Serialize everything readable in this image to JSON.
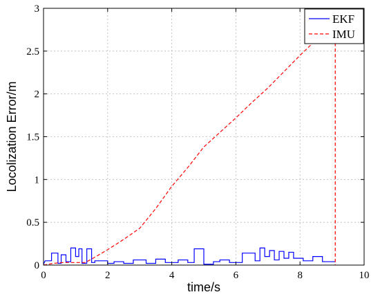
{
  "chart_data": {
    "type": "line",
    "title": "",
    "xlabel": "time/s",
    "ylabel": "Locolization Error/m",
    "xlim": [
      0,
      10
    ],
    "ylim": [
      0,
      3
    ],
    "xticks": [
      "0",
      "2",
      "4",
      "6",
      "8",
      "10"
    ],
    "yticks": [
      "0",
      "0.5",
      "1",
      "1.5",
      "2",
      "2.5",
      "3"
    ],
    "grid": true,
    "legend_position": "top-right",
    "series": [
      {
        "name": "EKF",
        "color": "#0000ff",
        "style": "solid",
        "x": [
          0,
          0.05,
          0.25,
          0.25,
          0.45,
          0.45,
          0.55,
          0.55,
          0.7,
          0.7,
          0.85,
          0.85,
          1.0,
          1.0,
          1.1,
          1.1,
          1.2,
          1.2,
          1.35,
          1.35,
          1.5,
          1.5,
          1.6,
          1.6,
          2.0,
          2.0,
          2.2,
          2.2,
          2.5,
          2.5,
          2.8,
          2.8,
          3.2,
          3.2,
          3.5,
          3.5,
          3.8,
          3.8,
          4.2,
          4.2,
          4.5,
          4.5,
          4.7,
          4.7,
          5.0,
          5.0,
          5.3,
          5.3,
          5.5,
          5.5,
          5.8,
          5.8,
          6.2,
          6.2,
          6.6,
          6.6,
          6.75,
          6.75,
          6.9,
          6.9,
          7.05,
          7.05,
          7.2,
          7.2,
          7.35,
          7.35,
          7.5,
          7.5,
          7.65,
          7.65,
          7.8,
          7.8,
          8.1,
          8.1,
          8.4,
          8.4,
          8.7,
          8.7,
          9.1
        ],
        "y": [
          0.01,
          0.05,
          0.05,
          0.14,
          0.14,
          0.02,
          0.02,
          0.12,
          0.12,
          0.04,
          0.04,
          0.2,
          0.2,
          0.1,
          0.1,
          0.19,
          0.19,
          0.02,
          0.02,
          0.19,
          0.19,
          0.03,
          0.03,
          0.05,
          0.05,
          0.02,
          0.02,
          0.04,
          0.04,
          0.02,
          0.02,
          0.06,
          0.06,
          0.02,
          0.02,
          0.07,
          0.07,
          0.03,
          0.03,
          0.06,
          0.06,
          0.03,
          0.03,
          0.19,
          0.19,
          0.01,
          0.01,
          0.04,
          0.04,
          0.06,
          0.06,
          0.03,
          0.03,
          0.14,
          0.14,
          0.05,
          0.05,
          0.2,
          0.2,
          0.1,
          0.1,
          0.17,
          0.17,
          0.06,
          0.06,
          0.16,
          0.16,
          0.08,
          0.08,
          0.15,
          0.15,
          0.08,
          0.08,
          0.05,
          0.05,
          0.1,
          0.1,
          0.04,
          0.04
        ]
      },
      {
        "name": "IMU",
        "color": "#ff0000",
        "style": "dashed",
        "x": [
          0,
          0.3,
          0.6,
          1.0,
          1.3,
          1.5,
          2.0,
          2.5,
          3.0,
          3.5,
          4.0,
          4.5,
          5.0,
          5.5,
          6.0,
          6.5,
          7.0,
          7.5,
          8.0,
          8.5,
          9.0,
          9.1,
          9.1
        ],
        "y": [
          0.0,
          0.02,
          0.03,
          0.03,
          0.03,
          0.07,
          0.18,
          0.3,
          0.43,
          0.66,
          0.92,
          1.14,
          1.38,
          1.55,
          1.72,
          1.9,
          2.07,
          2.26,
          2.45,
          2.63,
          2.8,
          2.82,
          0.0
        ]
      }
    ]
  }
}
